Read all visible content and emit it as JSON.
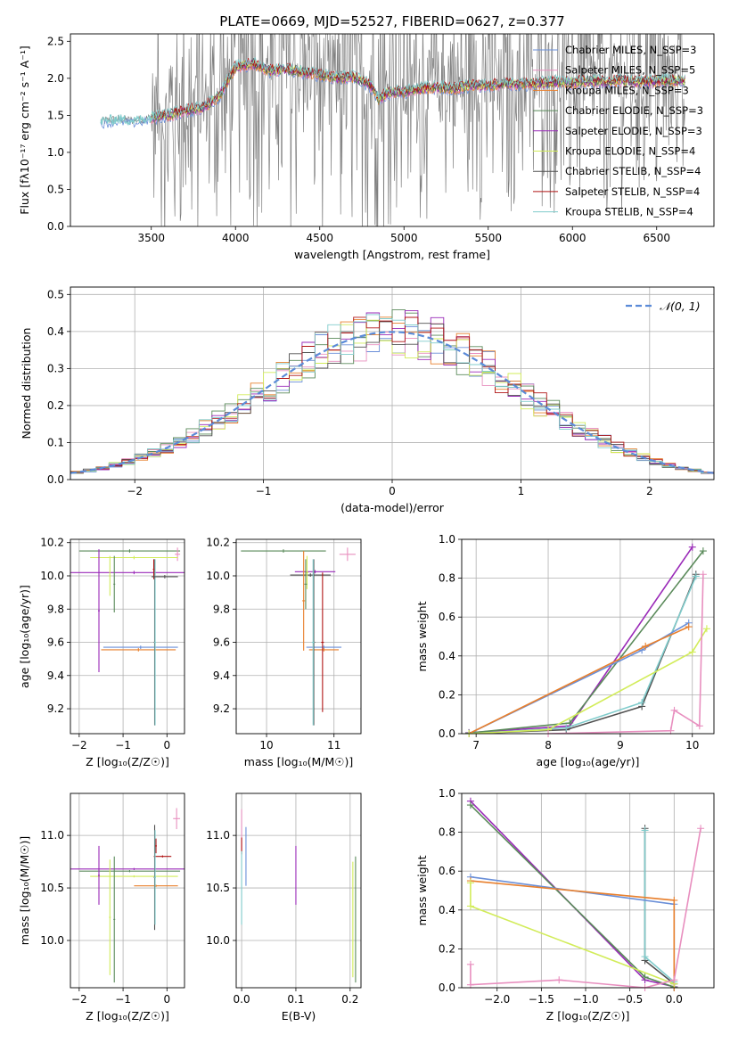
{
  "figure": {
    "title": "PLATE=0669, MJD=52527, FIBERID=0627, z=0.377"
  },
  "chart_data": [
    {
      "id": "spectrum",
      "type": "line",
      "title": "PLATE=0669, MJD=52527, FIBERID=0627, z=0.377",
      "xlabel": "wavelength [Angstrom, rest frame]",
      "ylabel": "Flux [fλ10⁻¹⁷ erg cm⁻² s⁻¹ A⁻¹]",
      "xlim": [
        3020,
        6840
      ],
      "ylim": [
        0,
        2.6
      ],
      "xticks": [
        3500,
        4000,
        4500,
        5000,
        5500,
        6000,
        6500
      ],
      "yticks": [
        0.0,
        0.5,
        1.0,
        1.5,
        2.0,
        2.5
      ],
      "grid": false,
      "legend_position": "top-right",
      "observed_color": "#808080",
      "series": [
        {
          "name": "Chabrier MILES, N_SSP=3",
          "color": "#6a8fd8"
        },
        {
          "name": "Salpeter MILES, N_SSP=5",
          "color": "#e88fbf"
        },
        {
          "name": "Kroupa MILES, N_SSP=3",
          "color": "#e8802e"
        },
        {
          "name": "Chabrier ELODIE, N_SSP=3",
          "color": "#5a8a5a"
        },
        {
          "name": "Salpeter ELODIE, N_SSP=3",
          "color": "#9a2ab8"
        },
        {
          "name": "Kroupa ELODIE, N_SSP=4",
          "color": "#d2ec5a"
        },
        {
          "name": "Chabrier STELIB, N_SSP=4",
          "color": "#505050"
        },
        {
          "name": "Salpeter STELIB, N_SSP=4",
          "color": "#b01515"
        },
        {
          "name": "Kroupa STELIB, N_SSP=4",
          "color": "#80cccc"
        }
      ],
      "continuum_shape": [
        [
          3200,
          1.42
        ],
        [
          3300,
          1.45
        ],
        [
          3400,
          1.43
        ],
        [
          3500,
          1.47
        ],
        [
          3600,
          1.5
        ],
        [
          3700,
          1.56
        ],
        [
          3800,
          1.6
        ],
        [
          3900,
          1.75
        ],
        [
          4000,
          2.15
        ],
        [
          4100,
          2.2
        ],
        [
          4200,
          2.1
        ],
        [
          4300,
          2.12
        ],
        [
          4400,
          2.08
        ],
        [
          4500,
          2.05
        ],
        [
          4600,
          2.0
        ],
        [
          4700,
          2.02
        ],
        [
          4800,
          1.9
        ],
        [
          4850,
          1.72
        ],
        [
          4900,
          1.8
        ],
        [
          5000,
          1.82
        ],
        [
          5100,
          1.86
        ],
        [
          5200,
          1.88
        ],
        [
          5300,
          1.86
        ],
        [
          5400,
          1.9
        ],
        [
          5500,
          1.9
        ],
        [
          5600,
          1.92
        ],
        [
          5700,
          1.92
        ],
        [
          5800,
          1.93
        ],
        [
          5900,
          1.95
        ],
        [
          6000,
          1.94
        ],
        [
          6100,
          1.96
        ],
        [
          6200,
          1.95
        ],
        [
          6300,
          1.97
        ],
        [
          6400,
          1.95
        ],
        [
          6500,
          1.96
        ],
        [
          6600,
          1.97
        ],
        [
          6670,
          1.96
        ]
      ]
    },
    {
      "id": "residuals",
      "type": "step",
      "xlabel": "(data-model)/error",
      "ylabel": "Normed distribution",
      "xlim": [
        -2.5,
        2.5
      ],
      "ylim": [
        0,
        0.52
      ],
      "xticks": [
        -2,
        -1,
        0,
        1,
        2
      ],
      "yticks": [
        0.0,
        0.1,
        0.2,
        0.3,
        0.4,
        0.5
      ],
      "grid": true,
      "legend_position": "top-right",
      "reference": {
        "name": "𝒩(0, 1)",
        "color": "#5b8bd8",
        "style": "dashed"
      },
      "bin_edges": [
        -2.5,
        -2.4,
        -2.3,
        -2.2,
        -2.1,
        -2.0,
        -1.9,
        -1.8,
        -1.7,
        -1.6,
        -1.5,
        -1.4,
        -1.3,
        -1.2,
        -1.1,
        -1.0,
        -0.9,
        -0.8,
        -0.7,
        -0.6,
        -0.5,
        -0.4,
        -0.3,
        -0.2,
        -0.1,
        0.0,
        0.1,
        0.2,
        0.3,
        0.4,
        0.5,
        0.6,
        0.7,
        0.8,
        0.9,
        1.0,
        1.1,
        1.2,
        1.3,
        1.4,
        1.5,
        1.6,
        1.7,
        1.8,
        1.9,
        2.0,
        2.1,
        2.2,
        2.3,
        2.4,
        2.5
      ],
      "series_colors": [
        "#6a8fd8",
        "#e88fbf",
        "#e8802e",
        "#5a8a5a",
        "#9a2ab8",
        "#d2ec5a",
        "#505050",
        "#b01515",
        "#80cccc"
      ]
    },
    {
      "id": "age-vs-Z",
      "type": "errorbar",
      "xlabel": "Z [log₁₀(Z/Z☉)]",
      "ylabel": "age  [log₁₀(age/yr)]",
      "xlim": [
        -2.2,
        0.4
      ],
      "ylim": [
        9.05,
        10.22
      ],
      "xticks": [
        -2,
        -1,
        0
      ],
      "yticks": [
        9.2,
        9.4,
        9.6,
        9.8,
        10.0,
        10.2
      ],
      "grid": true,
      "bars": [
        {
          "color": "#5a8a5a",
          "x": -0.85,
          "xerr": 1.15,
          "y": 10.15,
          "yerr": 0.01
        },
        {
          "color": "#e88fbf",
          "x": 0.24,
          "xerr": 0.06,
          "y": 10.13,
          "yerr": 0.04
        },
        {
          "color": "#d2ec5a",
          "x": -0.75,
          "xerr": 1.0,
          "y": 10.11,
          "yerr": 0.01
        },
        {
          "color": "#9a2ab8",
          "x": -0.75,
          "xerr": 1.45,
          "y": 10.02,
          "yerr": 0.01
        },
        {
          "color": "#6a8fd8",
          "x": -0.6,
          "xerr": 0.85,
          "y": 9.57,
          "yerr": 0.01
        },
        {
          "color": "#e8802e",
          "x": -0.65,
          "xerr": 0.85,
          "y": 9.555,
          "yerr": 0.01
        },
        {
          "color": "#9a2ab8",
          "x": -1.55,
          "xerr": 0.02,
          "y": 9.79,
          "yerr": 0.37
        },
        {
          "color": "#d2ec5a",
          "x": -1.3,
          "xerr": 0.02,
          "y": 10.0,
          "yerr": 0.12
        },
        {
          "color": "#5a8a5a",
          "x": -1.2,
          "xerr": 0.02,
          "y": 9.95,
          "yerr": 0.17
        },
        {
          "color": "#505050",
          "x": -0.28,
          "xerr": 0.02,
          "y": 9.6,
          "yerr": 0.5
        },
        {
          "color": "#80cccc",
          "x": -0.27,
          "xerr": 0.02,
          "y": 9.6,
          "yerr": 0.5
        },
        {
          "color": "#b01515",
          "x": -0.3,
          "xerr": 0.02,
          "y": 10.04,
          "yerr": 0.06
        },
        {
          "color": "#505050",
          "x": -0.05,
          "xerr": 0.3,
          "y": 9.995,
          "yerr": 0.01
        }
      ]
    },
    {
      "id": "age-vs-mass",
      "type": "errorbar",
      "xlabel": "mass [log₁₀(M/M☉)]",
      "xlim": [
        9.55,
        11.4
      ],
      "ylim": [
        9.05,
        10.22
      ],
      "xticks": [
        10,
        11
      ],
      "yticks": [
        9.2,
        9.4,
        9.6,
        9.8,
        10.0,
        10.2
      ],
      "grid": true,
      "bars": [
        {
          "color": "#5a8a5a",
          "x": 10.25,
          "xerr": 0.63,
          "y": 10.15,
          "yerr": 0.01
        },
        {
          "color": "#e88fbf",
          "x": 11.2,
          "xerr": 0.12,
          "y": 10.13,
          "yerr": 0.04
        },
        {
          "color": "#9a2ab8",
          "x": 10.72,
          "xerr": 0.3,
          "y": 10.025,
          "yerr": 0.01
        },
        {
          "color": "#505050",
          "x": 10.65,
          "xerr": 0.3,
          "y": 10.005,
          "yerr": 0.01
        },
        {
          "color": "#6a8fd8",
          "x": 10.85,
          "xerr": 0.26,
          "y": 9.57,
          "yerr": 0.01
        },
        {
          "color": "#e8802e",
          "x": 10.85,
          "xerr": 0.22,
          "y": 9.555,
          "yerr": 0.01
        },
        {
          "color": "#d2ec5a",
          "x": 10.6,
          "xerr": 0.02,
          "y": 10.02,
          "yerr": 0.1
        },
        {
          "color": "#e8802e",
          "x": 10.55,
          "xerr": 0.02,
          "y": 9.85,
          "yerr": 0.3
        },
        {
          "color": "#505050",
          "x": 10.7,
          "xerr": 0.02,
          "y": 9.6,
          "yerr": 0.5
        },
        {
          "color": "#80cccc",
          "x": 10.69,
          "xerr": 0.02,
          "y": 9.6,
          "yerr": 0.5
        },
        {
          "color": "#b01515",
          "x": 10.83,
          "xerr": 0.02,
          "y": 9.6,
          "yerr": 0.42
        },
        {
          "color": "#5a8a5a",
          "x": 10.58,
          "xerr": 0.02,
          "y": 9.95,
          "yerr": 0.15
        }
      ]
    },
    {
      "id": "massweight-vs-age",
      "type": "line",
      "xlabel": "age  [log₁₀(age/yr)]",
      "ylabel": "mass weight",
      "xlim": [
        6.8,
        10.3
      ],
      "ylim": [
        0,
        1.0
      ],
      "xticks": [
        7,
        8,
        9,
        10
      ],
      "yticks": [
        0.0,
        0.2,
        0.4,
        0.6,
        0.8,
        1.0
      ],
      "grid": true,
      "series": [
        {
          "color": "#9a2ab8",
          "x": [
            6.9,
            8.3,
            10.0
          ],
          "y": [
            0.005,
            0.04,
            0.96
          ]
        },
        {
          "color": "#5a8a5a",
          "x": [
            6.9,
            8.3,
            10.15
          ],
          "y": [
            0.003,
            0.055,
            0.94
          ]
        },
        {
          "color": "#505050",
          "x": [
            6.9,
            8.25,
            9.3,
            10.05
          ],
          "y": [
            0.0,
            0.02,
            0.14,
            0.82
          ]
        },
        {
          "color": "#80cccc",
          "x": [
            6.9,
            8.25,
            9.3,
            10.05
          ],
          "y": [
            0.0,
            0.03,
            0.16,
            0.81
          ]
        },
        {
          "color": "#6a8fd8",
          "x": [
            6.9,
            9.3,
            9.95
          ],
          "y": [
            0.0,
            0.43,
            0.57
          ]
        },
        {
          "color": "#e8802e",
          "x": [
            6.9,
            9.35,
            9.95
          ],
          "y": [
            0.0,
            0.45,
            0.55
          ]
        },
        {
          "color": "#d2ec5a",
          "x": [
            6.9,
            8.0,
            10.0,
            10.2
          ],
          "y": [
            0.0,
            0.02,
            0.42,
            0.54
          ]
        },
        {
          "color": "#e88fbf",
          "x": [
            8.0,
            9.7,
            9.75,
            10.1,
            10.15
          ],
          "y": [
            0.0,
            0.015,
            0.12,
            0.04,
            0.82
          ]
        }
      ]
    },
    {
      "id": "mass-vs-Z",
      "type": "errorbar",
      "xlabel": "Z [log₁₀(Z/Z☉)]",
      "ylabel": "mass [log₁₀(M/M☉)]",
      "xlim": [
        -2.2,
        0.4
      ],
      "ylim": [
        9.55,
        11.4
      ],
      "xticks": [
        -2,
        -1,
        0
      ],
      "yticks": [
        10.0,
        10.5,
        11.0
      ],
      "grid": true,
      "bars": [
        {
          "color": "#9a2ab8",
          "x": -0.75,
          "xerr": 1.45,
          "y": 10.68,
          "yerr": 0.01
        },
        {
          "color": "#5a8a5a",
          "x": -0.85,
          "xerr": 1.15,
          "y": 10.66,
          "yerr": 0.01
        },
        {
          "color": "#d2ec5a",
          "x": -0.75,
          "xerr": 1.0,
          "y": 10.61,
          "yerr": 0.01
        },
        {
          "color": "#e8802e",
          "x": -0.25,
          "xerr": 0.5,
          "y": 10.52,
          "yerr": 0.01
        },
        {
          "color": "#b01515",
          "x": -0.1,
          "xerr": 0.2,
          "y": 10.8,
          "yerr": 0.01
        },
        {
          "color": "#e88fbf",
          "x": 0.22,
          "xerr": 0.08,
          "y": 11.16,
          "yerr": 0.1
        },
        {
          "color": "#9a2ab8",
          "x": -1.55,
          "xerr": 0.02,
          "y": 10.62,
          "yerr": 0.28
        },
        {
          "color": "#d2ec5a",
          "x": -1.3,
          "xerr": 0.02,
          "y": 10.22,
          "yerr": 0.55
        },
        {
          "color": "#5a8a5a",
          "x": -1.2,
          "xerr": 0.02,
          "y": 10.2,
          "yerr": 0.6
        },
        {
          "color": "#505050",
          "x": -0.28,
          "xerr": 0.02,
          "y": 10.6,
          "yerr": 0.5
        },
        {
          "color": "#80cccc",
          "x": -0.27,
          "xerr": 0.02,
          "y": 10.6,
          "yerr": 0.45
        },
        {
          "color": "#b01515",
          "x": -0.25,
          "xerr": 0.02,
          "y": 10.9,
          "yerr": 0.07
        }
      ]
    },
    {
      "id": "mass-vs-EBV",
      "type": "errorbar",
      "xlabel": "E(B-V)",
      "xlim": [
        -0.01,
        0.22
      ],
      "ylim": [
        9.55,
        11.4
      ],
      "xticks": [
        0.0,
        0.1,
        0.2
      ],
      "yticks": [
        10.0,
        10.5,
        11.0
      ],
      "grid": true,
      "bars": [
        {
          "color": "#e88fbf",
          "x": 0.0,
          "xerr": 0.0,
          "y": 11.05,
          "yerr": 0.2
        },
        {
          "color": "#b01515",
          "x": 0.0,
          "xerr": 0.0,
          "y": 10.9,
          "yerr": 0.08
        },
        {
          "color": "#80cccc",
          "x": 0.0,
          "xerr": 0.0,
          "y": 10.5,
          "yerr": 0.35
        },
        {
          "color": "#6a8fd8",
          "x": 0.008,
          "xerr": 0.0,
          "y": 10.8,
          "yerr": 0.28
        },
        {
          "color": "#9a2ab8",
          "x": 0.1,
          "xerr": 0.0,
          "y": 10.62,
          "yerr": 0.28
        },
        {
          "color": "#d2ec5a",
          "x": 0.205,
          "xerr": 0.0,
          "y": 10.2,
          "yerr": 0.55
        },
        {
          "color": "#5a8a5a",
          "x": 0.21,
          "xerr": 0.0,
          "y": 10.2,
          "yerr": 0.6
        }
      ]
    },
    {
      "id": "massweight-vs-Z",
      "type": "line",
      "xlabel": "Z [log₁₀(Z/Z☉)]",
      "ylabel": "mass weight",
      "xlim": [
        -2.4,
        0.45
      ],
      "ylim": [
        0,
        1.0
      ],
      "xticks": [
        -2.0,
        -1.5,
        -1.0,
        -0.5,
        0.0
      ],
      "yticks": [
        0.0,
        0.2,
        0.4,
        0.6,
        0.8,
        1.0
      ],
      "grid": true,
      "series": [
        {
          "color": "#9a2ab8",
          "x": [
            -2.3,
            -0.33,
            0.0
          ],
          "y": [
            0.96,
            0.04,
            0.005
          ]
        },
        {
          "color": "#5a8a5a",
          "x": [
            -2.3,
            -0.33,
            0.0
          ],
          "y": [
            0.94,
            0.055,
            0.003
          ]
        },
        {
          "color": "#505050",
          "x": [
            -0.33,
            -0.33,
            0.0,
            0.0
          ],
          "y": [
            0.82,
            0.14,
            0.02,
            0.0
          ]
        },
        {
          "color": "#80cccc",
          "x": [
            -0.33,
            -0.33,
            0.0,
            0.0
          ],
          "y": [
            0.81,
            0.16,
            0.03,
            0.0
          ]
        },
        {
          "color": "#6a8fd8",
          "x": [
            -2.3,
            0.0,
            0.0
          ],
          "y": [
            0.57,
            0.43,
            0.0
          ]
        },
        {
          "color": "#e8802e",
          "x": [
            -2.3,
            0.0,
            0.0
          ],
          "y": [
            0.55,
            0.45,
            0.0
          ]
        },
        {
          "color": "#d2ec5a",
          "x": [
            -2.3,
            -2.3,
            0.0
          ],
          "y": [
            0.54,
            0.42,
            0.02
          ]
        },
        {
          "color": "#e88fbf",
          "x": [
            -2.3,
            -2.3,
            -1.3,
            -0.33,
            0.0,
            0.3
          ],
          "y": [
            0.12,
            0.015,
            0.04,
            0.0,
            0.04,
            0.82
          ]
        }
      ]
    }
  ]
}
